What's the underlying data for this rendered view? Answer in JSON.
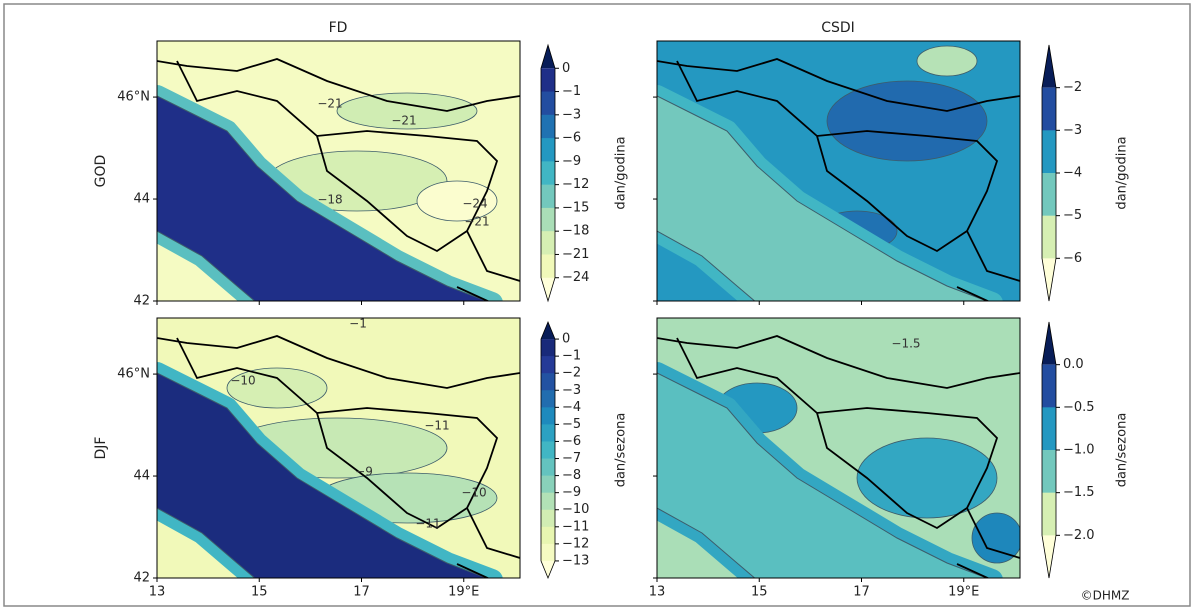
{
  "columns": [
    "FD",
    "CSDI"
  ],
  "rows": [
    "GOD",
    "DJF"
  ],
  "lon_ticks": [
    13,
    15,
    17,
    {
      "value": 19,
      "label": "19°E"
    }
  ],
  "lat_ticks": [
    42,
    44,
    {
      "value": 46,
      "label": "46°N"
    }
  ],
  "lon_range": [
    13,
    20.1
  ],
  "lat_range": [
    42,
    47.1
  ],
  "palette": [
    "#081d58",
    "#253494",
    "#225ea8",
    "#1d91c0",
    "#41b6c4",
    "#7fcdbb",
    "#c7e9b4",
    "#edf8b1",
    "#ffffd9"
  ],
  "panels": [
    {
      "contour_labels": [
        "−21",
        "−21",
        "−18",
        "−24",
        "−21"
      ]
    },
    {
      "contour_labels": []
    },
    {
      "contour_labels": [
        "−1",
        "−10",
        "−11",
        "−9",
        "−10",
        "−11"
      ]
    },
    {
      "contour_labels": [
        "−1.5"
      ]
    }
  ],
  "colorbars": [
    {
      "label": "dan/godina",
      "ticks": [
        0,
        {
          "value": -1,
          "label": "−1"
        },
        {
          "value": -3,
          "label": "−3"
        },
        {
          "value": -6,
          "label": "−6"
        },
        {
          "value": -9,
          "label": "−9"
        },
        {
          "value": -12,
          "label": "−12"
        },
        {
          "value": -15,
          "label": "−15"
        },
        {
          "value": -18,
          "label": "−18"
        },
        {
          "value": -21,
          "label": "−21"
        },
        {
          "value": -24,
          "label": "−24"
        }
      ]
    },
    {
      "label": "dan/godina",
      "ticks": [
        {
          "value": -2,
          "label": "−2"
        },
        {
          "value": -3,
          "label": "−3"
        },
        {
          "value": -4,
          "label": "−4"
        },
        {
          "value": -5,
          "label": "−5"
        },
        {
          "value": -6,
          "label": "−6"
        }
      ]
    },
    {
      "label": "dan/sezona",
      "ticks": [
        0,
        {
          "value": -1,
          "label": "−1"
        },
        {
          "value": -2,
          "label": "−2"
        },
        {
          "value": -3,
          "label": "−3"
        },
        {
          "value": -4,
          "label": "−4"
        },
        {
          "value": -5,
          "label": "−5"
        },
        {
          "value": -6,
          "label": "−6"
        },
        {
          "value": -7,
          "label": "−7"
        },
        {
          "value": -8,
          "label": "−8"
        },
        {
          "value": -9,
          "label": "−9"
        },
        {
          "value": -10,
          "label": "−10"
        },
        {
          "value": -11,
          "label": "−11"
        },
        {
          "value": -12,
          "label": "−12"
        },
        {
          "value": -13,
          "label": "−13"
        }
      ]
    },
    {
      "label": "dan/sezona",
      "ticks": [
        {
          "value": 0,
          "label": "0.0"
        },
        {
          "value": -0.5,
          "label": "−0.5"
        },
        {
          "value": -1,
          "label": "−1.0"
        },
        {
          "value": -1.5,
          "label": "−1.5"
        },
        {
          "value": -2,
          "label": "−2.0"
        }
      ]
    }
  ],
  "credit": "©DHMZ"
}
